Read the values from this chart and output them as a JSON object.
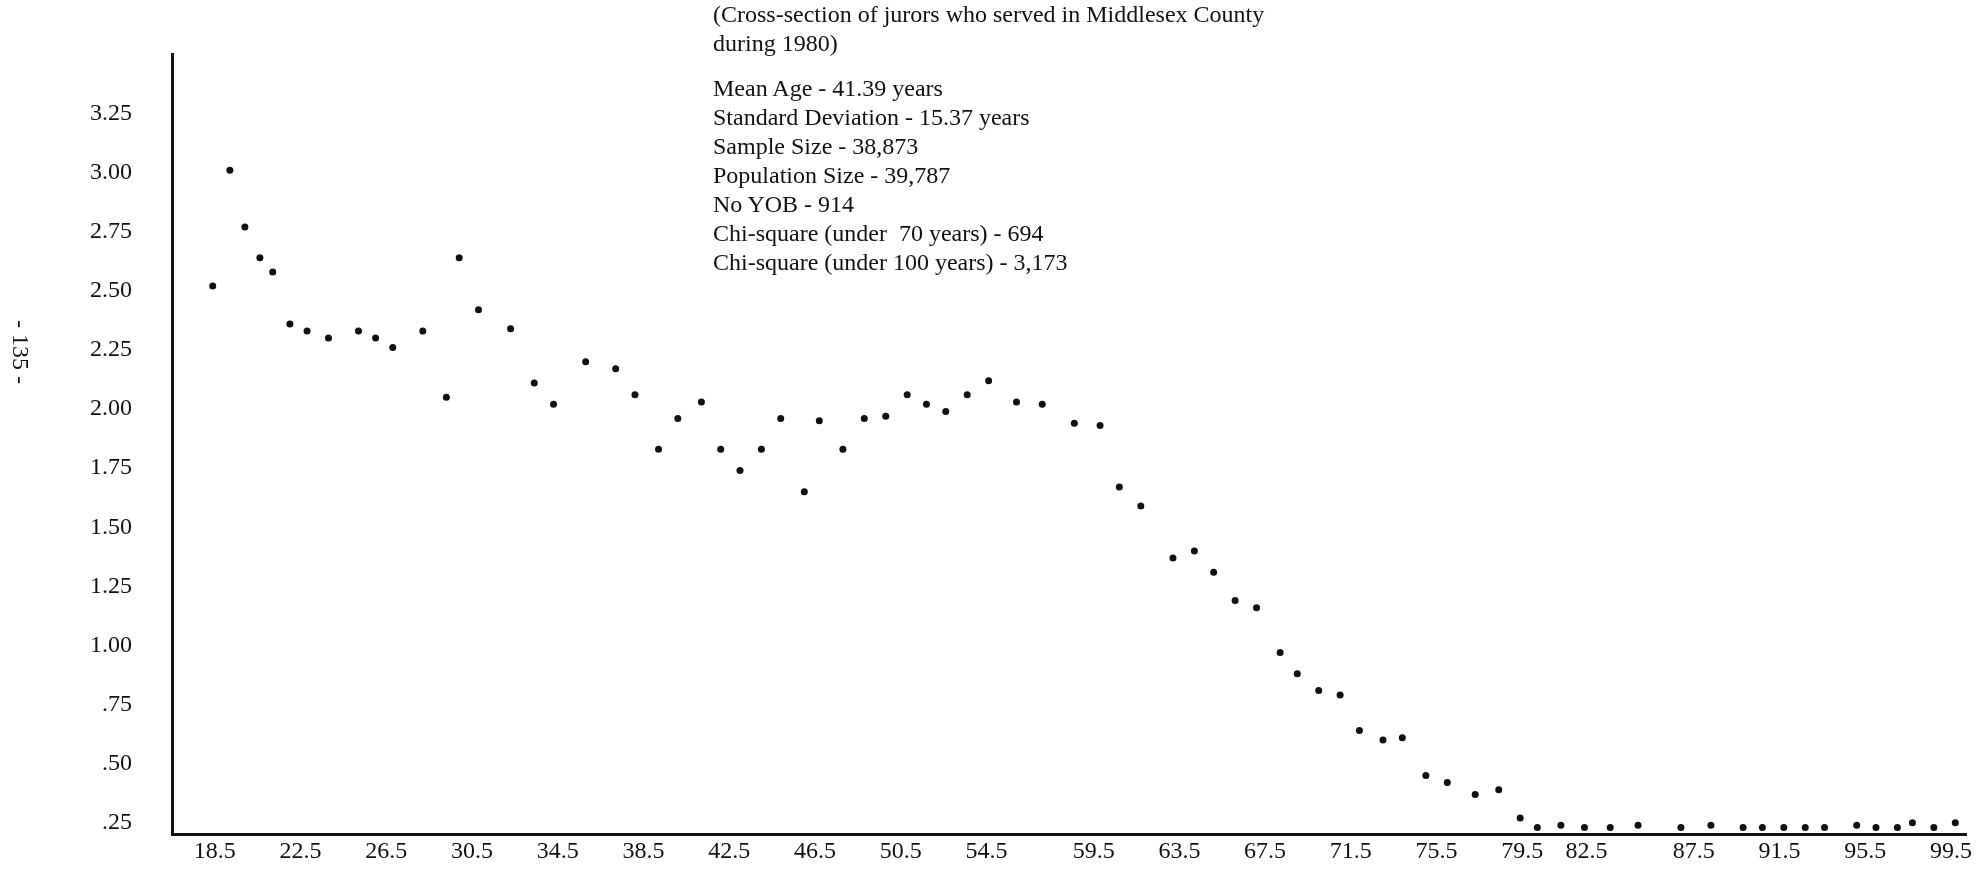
{
  "chart_data": {
    "type": "scatter",
    "title": "(Cross-section of jurors who served in Middlesex County during 1980)",
    "annotations": [
      "Mean Age - 41.39 years",
      "Standard Deviation - 15.37 years",
      "Sample Size - 38,873",
      "Population Size - 39,787",
      "No YOB - 914",
      "Chi-square (under  70 years) - 694",
      "Chi-square (under 100 years) - 3,173",
      "- 135 -"
    ],
    "x": [
      18.4,
      19.2,
      19.9,
      20.6,
      21.2,
      22.0,
      22.8,
      23.8,
      25.2,
      26.0,
      26.8,
      28.2,
      29.3,
      29.9,
      30.8,
      32.3,
      33.4,
      34.3,
      35.8,
      37.2,
      38.1,
      39.2,
      40.1,
      41.2,
      42.1,
      43.0,
      44.0,
      44.9,
      46.0,
      46.7,
      47.8,
      48.8,
      49.8,
      50.8,
      51.7,
      52.6,
      53.6,
      54.6,
      55.9,
      57.1,
      58.6,
      59.8,
      60.7,
      61.7,
      63.2,
      64.2,
      65.1,
      66.1,
      67.1,
      68.2,
      69.0,
      70.0,
      71.0,
      71.9,
      73.0,
      73.9,
      75.0,
      76.0,
      77.3,
      78.4,
      79.4,
      80.2,
      81.3,
      82.4,
      83.6,
      84.9,
      86.9,
      88.3,
      89.8,
      90.7,
      91.7,
      92.7,
      93.6,
      95.1,
      96.0,
      97.0,
      97.7,
      98.7,
      99.7
    ],
    "values": [
      2.52,
      3.01,
      2.77,
      2.64,
      2.58,
      2.36,
      2.33,
      2.3,
      2.33,
      2.3,
      2.26,
      2.33,
      2.05,
      2.64,
      2.42,
      2.34,
      2.11,
      2.02,
      2.2,
      2.17,
      2.06,
      1.83,
      1.96,
      2.03,
      1.83,
      1.74,
      1.83,
      1.96,
      1.65,
      1.95,
      1.83,
      1.96,
      1.97,
      2.06,
      2.02,
      1.99,
      2.06,
      2.12,
      2.03,
      2.02,
      1.94,
      1.93,
      1.67,
      1.59,
      1.37,
      1.4,
      1.31,
      1.19,
      1.16,
      0.97,
      0.88,
      0.81,
      0.79,
      0.64,
      0.6,
      0.61,
      0.45,
      0.42,
      0.37,
      0.39,
      0.27,
      0.23,
      0.24,
      0.23,
      0.23,
      0.24,
      0.23,
      0.24,
      0.23,
      0.23,
      0.23,
      0.23,
      0.23,
      0.24,
      0.23,
      0.23,
      0.25,
      0.23,
      0.25
    ],
    "color": "#111111",
    "marker": "circle",
    "grid": false,
    "legend": false,
    "xlim": [
      16.5,
      100.2
    ],
    "xticks": [
      18.5,
      22.5,
      26.5,
      30.5,
      34.5,
      38.5,
      42.5,
      46.5,
      50.5,
      54.5,
      59.5,
      63.5,
      67.5,
      71.5,
      75.5,
      79.5,
      82.5,
      87.5,
      91.5,
      95.5,
      99.5
    ],
    "ylim": [
      0.2,
      3.5
    ],
    "yticks": [
      {
        "value": 3.25,
        "label": "3.25"
      },
      {
        "value": 3,
        "label": "3.00"
      },
      {
        "value": 2.75,
        "label": "2.75"
      },
      {
        "value": 2.5,
        "label": "2.50"
      },
      {
        "value": 2.25,
        "label": "2.25"
      },
      {
        "value": 2,
        "label": "2.00"
      },
      {
        "value": 1.75,
        "label": "1.75"
      },
      {
        "value": 1.5,
        "label": "1.50"
      },
      {
        "value": 1.25,
        "label": "1.25"
      },
      {
        "value": 1,
        "label": "1.00"
      },
      {
        "value": 0.75,
        "label": ".75"
      },
      {
        "value": 0.5,
        "label": ".50"
      },
      {
        "value": 0.25,
        "label": ".25"
      }
    ]
  }
}
